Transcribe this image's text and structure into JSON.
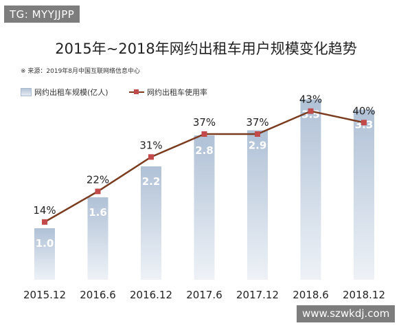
{
  "tag": "TG: MYYJJPP",
  "watermark": "www.szwkdj.com",
  "source": "※ 来源：2019年8月中国互联网络信息中心",
  "colors": {
    "line": "#7a3b1e",
    "marker": "#c24a4a",
    "bar_top": "#b0c1d6",
    "bar_bottom": "#eef2f7"
  },
  "chart_data": {
    "type": "bar",
    "title": "2015年~2018年网约出租车用户规模变化趋势",
    "categories": [
      "2015.12",
      "2016.6",
      "2016.12",
      "2017.6",
      "2017.12",
      "2018.6",
      "2018.12"
    ],
    "series": [
      {
        "name": "网约出租车规模(亿人)",
        "kind": "bar",
        "values": [
          1.0,
          1.6,
          2.2,
          2.8,
          2.9,
          3.5,
          3.3
        ],
        "labels": [
          "1.0",
          "1.6",
          "2.2",
          "2.8",
          "2.9",
          "3.5",
          "3.3"
        ]
      },
      {
        "name": "网约出租车使用率",
        "kind": "line",
        "values": [
          14,
          22,
          31,
          37,
          37,
          43,
          40
        ],
        "labels": [
          "14%",
          "22%",
          "31%",
          "37%",
          "37%",
          "43%",
          "40%"
        ]
      }
    ],
    "legend": "top-left",
    "grid": false
  }
}
